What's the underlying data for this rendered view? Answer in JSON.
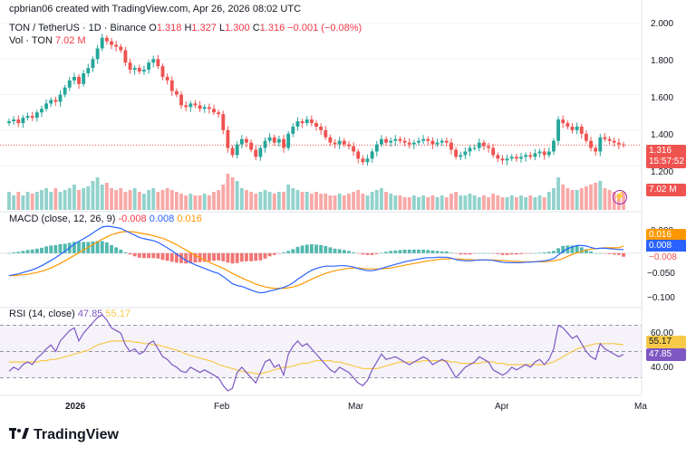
{
  "header": {
    "attribution": "cpbrian06 created with TradingView.com, Apr 26, 2026 08:02 UTC",
    "symbol": "TON / TetherUS · 1D · Binance",
    "o_label": "O",
    "o_val": "1.318",
    "h_label": "H",
    "h_val": "1.327",
    "l_label": "L",
    "l_val": "1.300",
    "c_label": "C",
    "c_val": "1.316",
    "change": "−0.001 (−0.08%)",
    "vol_label": "Vol · TON",
    "vol_val": "7.02 M"
  },
  "macd_legend": {
    "label": "MACD (close, 12, 26, 9)",
    "hist": "-0.008",
    "macd": "0.008",
    "signal": "0.016"
  },
  "rsi_legend": {
    "label": "RSI (14, close)",
    "rsi": "47.85",
    "ma": "55.17"
  },
  "price_axis": [
    "2.000",
    "1.800",
    "1.600",
    "1.400",
    "1.200"
  ],
  "macd_axis": [
    "0.000",
    "−0.050",
    "−0.100"
  ],
  "rsi_axis": [
    "60.00",
    "40.00"
  ],
  "time_axis": [
    "2026",
    "Feb",
    "Mar",
    "Apr",
    "Ma"
  ],
  "badges": {
    "price": "1.316",
    "countdown": "15:57:52",
    "volume": "7.02 M",
    "macd_signal": "0.016",
    "macd_line": "0.008",
    "macd_hist": "−0.008",
    "rsi_ma": "55.17",
    "rsi": "47.85"
  },
  "logo_text": "TradingView",
  "colors": {
    "up": "#26a69a",
    "down": "#ef5350",
    "macd": "#2962ff",
    "signal": "#ff9800",
    "rsi": "#7e57c2",
    "rsi_ma": "#f7c948"
  },
  "chart_data": {
    "type": "candlestick",
    "symbol": "TON / TetherUS",
    "interval": "1D",
    "y_range": [
      1.15,
      2.0
    ],
    "close": [
      1.45,
      1.46,
      1.44,
      1.47,
      1.48,
      1.47,
      1.5,
      1.52,
      1.55,
      1.57,
      1.56,
      1.6,
      1.64,
      1.68,
      1.7,
      1.66,
      1.72,
      1.75,
      1.8,
      1.86,
      1.92,
      1.9,
      1.88,
      1.87,
      1.85,
      1.78,
      1.74,
      1.75,
      1.73,
      1.74,
      1.78,
      1.8,
      1.76,
      1.7,
      1.68,
      1.62,
      1.6,
      1.54,
      1.53,
      1.55,
      1.54,
      1.52,
      1.53,
      1.52,
      1.5,
      1.49,
      1.4,
      1.3,
      1.26,
      1.32,
      1.35,
      1.33,
      1.29,
      1.25,
      1.3,
      1.34,
      1.36,
      1.33,
      1.35,
      1.3,
      1.38,
      1.42,
      1.45,
      1.44,
      1.46,
      1.44,
      1.42,
      1.4,
      1.36,
      1.33,
      1.32,
      1.34,
      1.32,
      1.31,
      1.28,
      1.24,
      1.22,
      1.24,
      1.28,
      1.32,
      1.35,
      1.33,
      1.34,
      1.35,
      1.34,
      1.33,
      1.32,
      1.33,
      1.34,
      1.35,
      1.34,
      1.32,
      1.33,
      1.34,
      1.33,
      1.29,
      1.25,
      1.26,
      1.28,
      1.3,
      1.3,
      1.33,
      1.31,
      1.3,
      1.26,
      1.24,
      1.23,
      1.24,
      1.25,
      1.24,
      1.25,
      1.26,
      1.25,
      1.27,
      1.28,
      1.26,
      1.28,
      1.34,
      1.46,
      1.44,
      1.42,
      1.4,
      1.42,
      1.38,
      1.34,
      1.3,
      1.28,
      1.36,
      1.35,
      1.34,
      1.33,
      1.32,
      1.316
    ],
    "volume_rel": [
      0.5,
      0.4,
      0.5,
      0.4,
      0.5,
      0.45,
      0.5,
      0.55,
      0.6,
      0.5,
      0.6,
      0.5,
      0.55,
      0.6,
      0.7,
      0.55,
      0.6,
      0.65,
      0.8,
      0.9,
      0.7,
      0.75,
      0.6,
      0.55,
      0.6,
      0.5,
      0.55,
      0.6,
      0.5,
      0.45,
      0.55,
      0.6,
      0.5,
      0.55,
      0.6,
      0.55,
      0.5,
      0.45,
      0.4,
      0.45,
      0.4,
      0.4,
      0.45,
      0.4,
      0.5,
      0.55,
      0.7,
      1.0,
      0.9,
      0.8,
      0.6,
      0.55,
      0.5,
      0.45,
      0.5,
      0.55,
      0.5,
      0.45,
      0.5,
      0.5,
      0.7,
      0.6,
      0.55,
      0.5,
      0.5,
      0.45,
      0.5,
      0.45,
      0.45,
      0.4,
      0.4,
      0.45,
      0.4,
      0.45,
      0.5,
      0.55,
      0.45,
      0.4,
      0.5,
      0.55,
      0.6,
      0.5,
      0.45,
      0.4,
      0.4,
      0.35,
      0.35,
      0.4,
      0.35,
      0.4,
      0.35,
      0.4,
      0.35,
      0.4,
      0.35,
      0.45,
      0.5,
      0.4,
      0.4,
      0.45,
      0.4,
      0.35,
      0.4,
      0.35,
      0.45,
      0.4,
      0.35,
      0.35,
      0.4,
      0.35,
      0.4,
      0.35,
      0.4,
      0.35,
      0.4,
      0.35,
      0.5,
      0.6,
      0.9,
      0.7,
      0.6,
      0.55,
      0.55,
      0.6,
      0.65,
      0.7,
      0.75,
      0.8,
      0.6,
      0.55,
      0.5,
      0.45,
      0.5
    ],
    "macd": [
      -0.05,
      -0.048,
      -0.046,
      -0.043,
      -0.04,
      -0.037,
      -0.033,
      -0.028,
      -0.022,
      -0.016,
      -0.01,
      -0.003,
      0.004,
      0.012,
      0.02,
      0.026,
      0.032,
      0.038,
      0.045,
      0.052,
      0.058,
      0.06,
      0.059,
      0.057,
      0.055,
      0.05,
      0.045,
      0.04,
      0.035,
      0.032,
      0.03,
      0.028,
      0.024,
      0.018,
      0.012,
      0.005,
      -0.002,
      -0.009,
      -0.016,
      -0.021,
      -0.026,
      -0.03,
      -0.034,
      -0.038,
      -0.042,
      -0.045,
      -0.052,
      -0.06,
      -0.068,
      -0.072,
      -0.074,
      -0.078,
      -0.082,
      -0.086,
      -0.088,
      -0.087,
      -0.084,
      -0.082,
      -0.079,
      -0.076,
      -0.072,
      -0.066,
      -0.058,
      -0.051,
      -0.044,
      -0.038,
      -0.034,
      -0.031,
      -0.029,
      -0.029,
      -0.029,
      -0.028,
      -0.028,
      -0.029,
      -0.031,
      -0.034,
      -0.037,
      -0.039,
      -0.039,
      -0.037,
      -0.034,
      -0.031,
      -0.028,
      -0.025,
      -0.022,
      -0.019,
      -0.017,
      -0.015,
      -0.013,
      -0.011,
      -0.01,
      -0.01,
      -0.009,
      -0.009,
      -0.009,
      -0.011,
      -0.014,
      -0.016,
      -0.017,
      -0.017,
      -0.016,
      -0.015,
      -0.015,
      -0.015,
      -0.016,
      -0.018,
      -0.02,
      -0.021,
      -0.021,
      -0.021,
      -0.021,
      -0.02,
      -0.02,
      -0.019,
      -0.018,
      -0.017,
      -0.015,
      -0.012,
      -0.004,
      0.004,
      0.01,
      0.014,
      0.017,
      0.017,
      0.016,
      0.013,
      0.01,
      0.011,
      0.011,
      0.01,
      0.009,
      0.008,
      0.008
    ],
    "signal": [
      -0.05,
      -0.05,
      -0.049,
      -0.048,
      -0.047,
      -0.045,
      -0.043,
      -0.04,
      -0.037,
      -0.033,
      -0.028,
      -0.023,
      -0.017,
      -0.011,
      -0.005,
      0.001,
      0.007,
      0.013,
      0.019,
      0.025,
      0.031,
      0.036,
      0.041,
      0.044,
      0.047,
      0.048,
      0.048,
      0.047,
      0.045,
      0.043,
      0.041,
      0.039,
      0.036,
      0.033,
      0.029,
      0.024,
      0.019,
      0.013,
      0.007,
      0.001,
      -0.005,
      -0.01,
      -0.015,
      -0.02,
      -0.025,
      -0.029,
      -0.034,
      -0.039,
      -0.045,
      -0.05,
      -0.055,
      -0.06,
      -0.064,
      -0.069,
      -0.072,
      -0.075,
      -0.077,
      -0.078,
      -0.078,
      -0.078,
      -0.077,
      -0.075,
      -0.072,
      -0.068,
      -0.063,
      -0.058,
      -0.053,
      -0.049,
      -0.045,
      -0.042,
      -0.039,
      -0.037,
      -0.035,
      -0.034,
      -0.033,
      -0.033,
      -0.034,
      -0.035,
      -0.035,
      -0.035,
      -0.035,
      -0.034,
      -0.033,
      -0.031,
      -0.029,
      -0.027,
      -0.025,
      -0.023,
      -0.021,
      -0.019,
      -0.017,
      -0.016,
      -0.014,
      -0.013,
      -0.013,
      -0.012,
      -0.013,
      -0.013,
      -0.014,
      -0.014,
      -0.015,
      -0.015,
      -0.015,
      -0.015,
      -0.015,
      -0.016,
      -0.016,
      -0.017,
      -0.018,
      -0.018,
      -0.019,
      -0.019,
      -0.019,
      -0.019,
      -0.019,
      -0.019,
      -0.018,
      -0.017,
      -0.015,
      -0.012,
      -0.007,
      -0.003,
      0.001,
      0.004,
      0.007,
      0.009,
      0.01,
      0.011,
      0.012,
      0.012,
      0.012,
      0.012,
      0.016
    ],
    "rsi": [
      35,
      38,
      36,
      40,
      42,
      40,
      45,
      48,
      52,
      55,
      50,
      58,
      62,
      66,
      68,
      58,
      64,
      68,
      72,
      76,
      78,
      74,
      68,
      66,
      64,
      55,
      50,
      52,
      48,
      50,
      56,
      58,
      52,
      46,
      44,
      40,
      38,
      35,
      34,
      38,
      36,
      34,
      36,
      34,
      32,
      30,
      24,
      20,
      22,
      34,
      38,
      34,
      30,
      26,
      34,
      42,
      44,
      38,
      40,
      32,
      48,
      54,
      58,
      54,
      56,
      52,
      48,
      44,
      40,
      36,
      34,
      38,
      36,
      34,
      30,
      26,
      24,
      28,
      36,
      42,
      48,
      44,
      45,
      46,
      44,
      42,
      40,
      42,
      44,
      46,
      44,
      40,
      42,
      44,
      42,
      36,
      30,
      34,
      38,
      40,
      42,
      46,
      44,
      42,
      36,
      34,
      32,
      34,
      38,
      36,
      38,
      40,
      38,
      42,
      44,
      40,
      44,
      52,
      70,
      68,
      64,
      60,
      62,
      56,
      50,
      46,
      44,
      56,
      52,
      50,
      48,
      46,
      47.85
    ],
    "rsi_ma": [
      42,
      42,
      42,
      42,
      42,
      42,
      42,
      43,
      43,
      44,
      44,
      45,
      46,
      47,
      48,
      49,
      50,
      51,
      53,
      55,
      56,
      57,
      58,
      58,
      58,
      58,
      58,
      57,
      57,
      56,
      56,
      55,
      55,
      54,
      53,
      52,
      51,
      50,
      48,
      47,
      46,
      45,
      44,
      43,
      42,
      40,
      39,
      38,
      37,
      36,
      35,
      34,
      34,
      33,
      33,
      34,
      35,
      36,
      37,
      38,
      38,
      39,
      40,
      41,
      41,
      42,
      43,
      43,
      43,
      43,
      42,
      42,
      41,
      40,
      39,
      38,
      37,
      37,
      37,
      37,
      38,
      39,
      40,
      41,
      42,
      42,
      42,
      42,
      42,
      43,
      43,
      43,
      43,
      43,
      43,
      42,
      42,
      41,
      41,
      41,
      41,
      41,
      42,
      42,
      42,
      41,
      41,
      40,
      40,
      40,
      40,
      40,
      40,
      40,
      40,
      40,
      41,
      42,
      44,
      46,
      48,
      50,
      52,
      53,
      54,
      55,
      56,
      56,
      56,
      56,
      56,
      55.5,
      55.17
    ]
  }
}
